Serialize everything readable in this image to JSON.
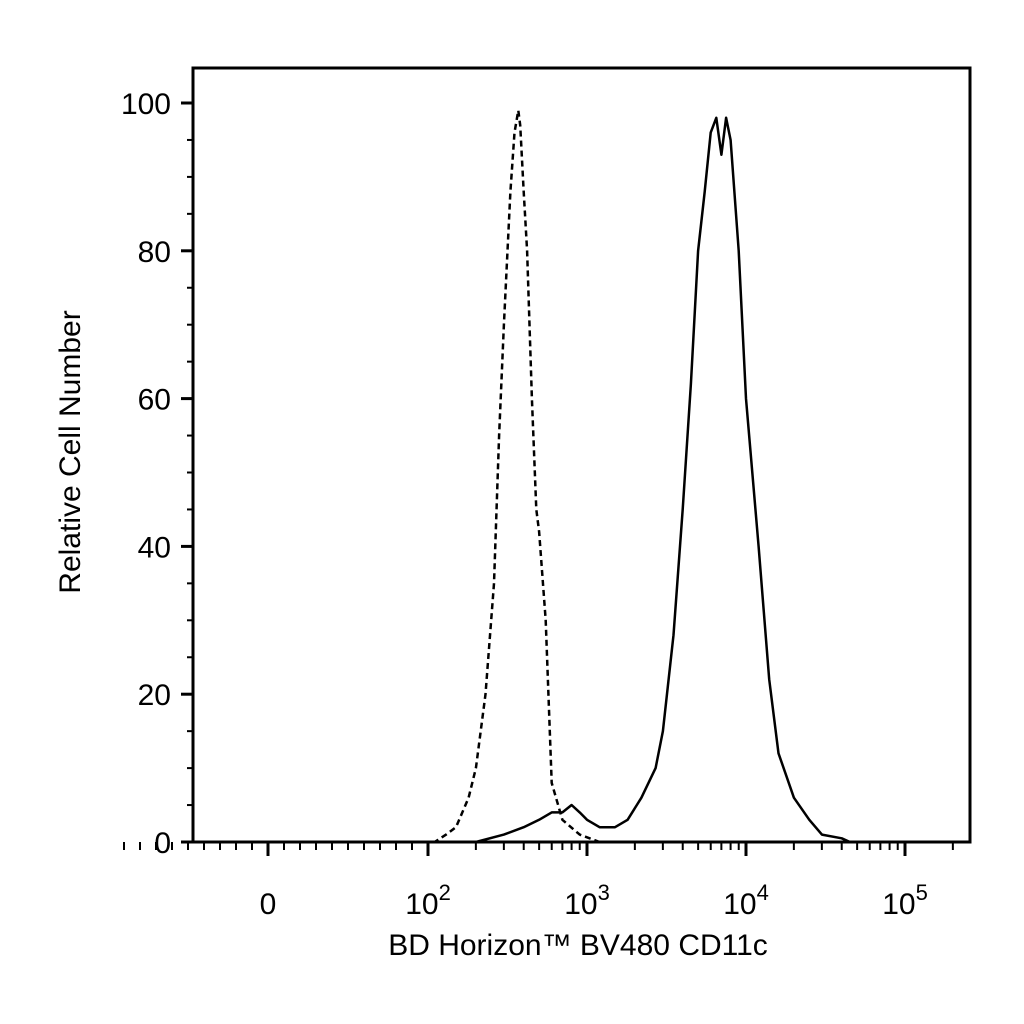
{
  "chart_data": {
    "type": "line",
    "title": "",
    "xlabel": "BD Horizon™ BV480 CD11c",
    "ylabel": "Relative Cell Number",
    "x_scale": "biexponential",
    "xlim": [
      -100,
      250000
    ],
    "ylim": [
      0,
      105
    ],
    "grid": false,
    "legend": "none",
    "x_ticks": [
      {
        "label": "0",
        "value": 0
      },
      {
        "label": "10",
        "sup": "2",
        "value": 100
      },
      {
        "label": "10",
        "sup": "3",
        "value": 1000
      },
      {
        "label": "10",
        "sup": "4",
        "value": 10000
      },
      {
        "label": "10",
        "sup": "5",
        "value": 100000
      }
    ],
    "y_ticks": [
      0,
      20,
      40,
      60,
      80,
      100
    ],
    "series": [
      {
        "style": "dashed",
        "x": [
          -100,
          0,
          110,
          130,
          150,
          180,
          200,
          230,
          260,
          280,
          300,
          330,
          350,
          370,
          380,
          400,
          420,
          450,
          480,
          500,
          550,
          600,
          700,
          900,
          1200,
          1500,
          3000,
          10000,
          40000
        ],
        "y": [
          0,
          0,
          0,
          1,
          2,
          6,
          10,
          20,
          35,
          55,
          70,
          88,
          96,
          99,
          97,
          88,
          80,
          60,
          45,
          42,
          30,
          8,
          3,
          1,
          0,
          0,
          0,
          0,
          0
        ]
      },
      {
        "style": "solid",
        "x": [
          -100,
          0,
          200,
          300,
          400,
          500,
          600,
          700,
          800,
          900,
          1000,
          1200,
          1500,
          1800,
          2200,
          2700,
          3000,
          3500,
          4000,
          4500,
          5000,
          5500,
          6000,
          6500,
          7000,
          7500,
          8000,
          9000,
          10000,
          12000,
          14000,
          16000,
          20000,
          25000,
          30000,
          40000,
          45000
        ],
        "y": [
          0,
          0,
          0,
          1,
          2,
          3,
          4,
          4,
          5,
          4,
          3,
          2,
          2,
          3,
          6,
          10,
          15,
          28,
          45,
          62,
          80,
          88,
          96,
          98,
          93,
          98,
          95,
          80,
          60,
          40,
          22,
          12,
          6,
          3,
          1,
          0.5,
          0
        ]
      }
    ]
  }
}
